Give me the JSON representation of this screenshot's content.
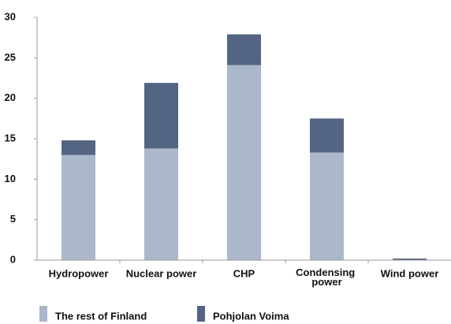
{
  "chart_data": {
    "type": "stacked_bar",
    "categories": [
      "Hydropower",
      "Nuclear power",
      "CHP",
      "Condensing power",
      "Wind power"
    ],
    "series": [
      {
        "name": "The rest of Finland",
        "color": "#abb7cb",
        "values": [
          13,
          13.8,
          24.1,
          13.3,
          0
        ]
      },
      {
        "name": "Pohjolan Voima",
        "color": "#536582",
        "values": [
          1.8,
          8.1,
          3.8,
          4.2,
          0.2
        ]
      }
    ],
    "ylim": [
      0,
      30
    ],
    "yticks": [
      0,
      5,
      10,
      15,
      20,
      25,
      30
    ],
    "grid": false,
    "legend": "bottom"
  }
}
